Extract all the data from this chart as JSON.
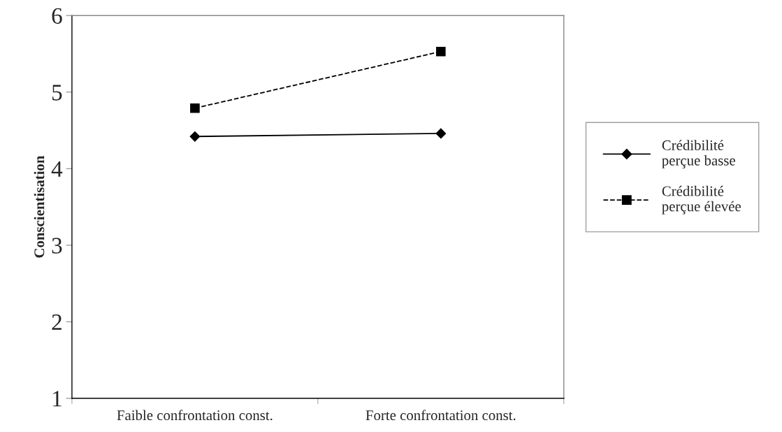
{
  "chart_data": {
    "type": "line",
    "ylabel": "Conscientisation",
    "categories": [
      "Faible confrontation const.",
      "Forte confrontation const."
    ],
    "series": [
      {
        "name": "Crédibilité perçue basse",
        "color": "#000000",
        "values": [
          4.42,
          4.46
        ],
        "marker": "diamond",
        "line_style": "solid"
      },
      {
        "name": "Crédibilité perçue élevée",
        "color": "#000000",
        "values": [
          4.79,
          5.53
        ],
        "marker": "square",
        "line_style": "dashed"
      }
    ],
    "ylim": [
      1,
      6
    ],
    "yticks": [
      1,
      2,
      3,
      4,
      5,
      6
    ],
    "grid": false,
    "legend": "right"
  }
}
